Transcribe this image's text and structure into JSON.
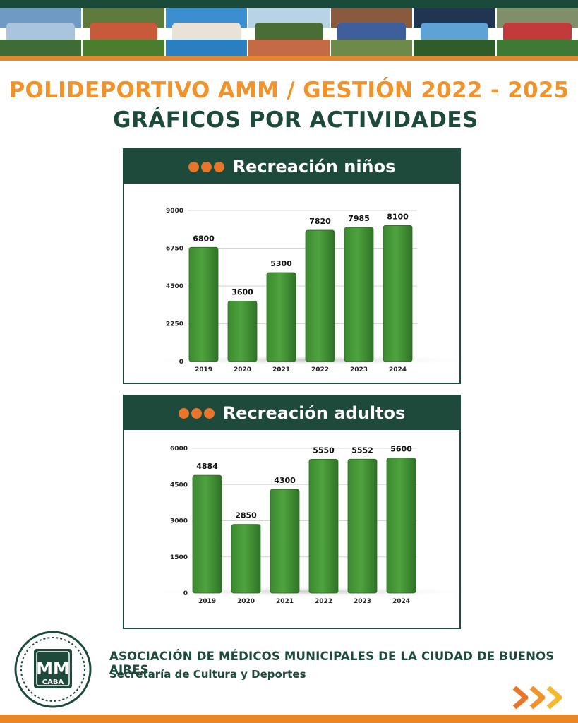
{
  "header": {
    "title_line1": "POLIDEPORTIVO AMM / GESTIÓN 2022 - 2025",
    "title_line2": "GRÁFICOS POR ACTIVIDADES"
  },
  "colors": {
    "bar": "#4fa33f",
    "dark_green": "#1d4a3b",
    "orange": "#f0932b"
  },
  "chart_data": [
    {
      "type": "bar",
      "title": "Recreación niños",
      "categories": [
        "2019",
        "2020",
        "2021",
        "2022",
        "2023",
        "2024"
      ],
      "values": [
        6800,
        3600,
        5300,
        7820,
        7985,
        8100
      ],
      "ylim": [
        0,
        9000
      ],
      "yticks": [
        "0",
        "2250",
        "4500",
        "6750",
        "9000"
      ],
      "grid": true
    },
    {
      "type": "bar",
      "title": "Recreación adultos",
      "categories": [
        "2019",
        "2020",
        "2021",
        "2022",
        "2023",
        "2024"
      ],
      "values": [
        4884,
        2850,
        4300,
        5550,
        5552,
        5600
      ],
      "ylim": [
        0,
        6000
      ],
      "yticks": [
        "0",
        "1500",
        "3000",
        "4500",
        "6000"
      ],
      "grid": true
    }
  ],
  "footer": {
    "org_name": "ASOCIACIÓN DE MÉDICOS MUNICIPALES DE LA CIUDAD DE BUENOS AIRES",
    "department": "Secretaría de Cultura y Deportes",
    "logo_text_main": "MM",
    "logo_text_sub": "CABA"
  }
}
